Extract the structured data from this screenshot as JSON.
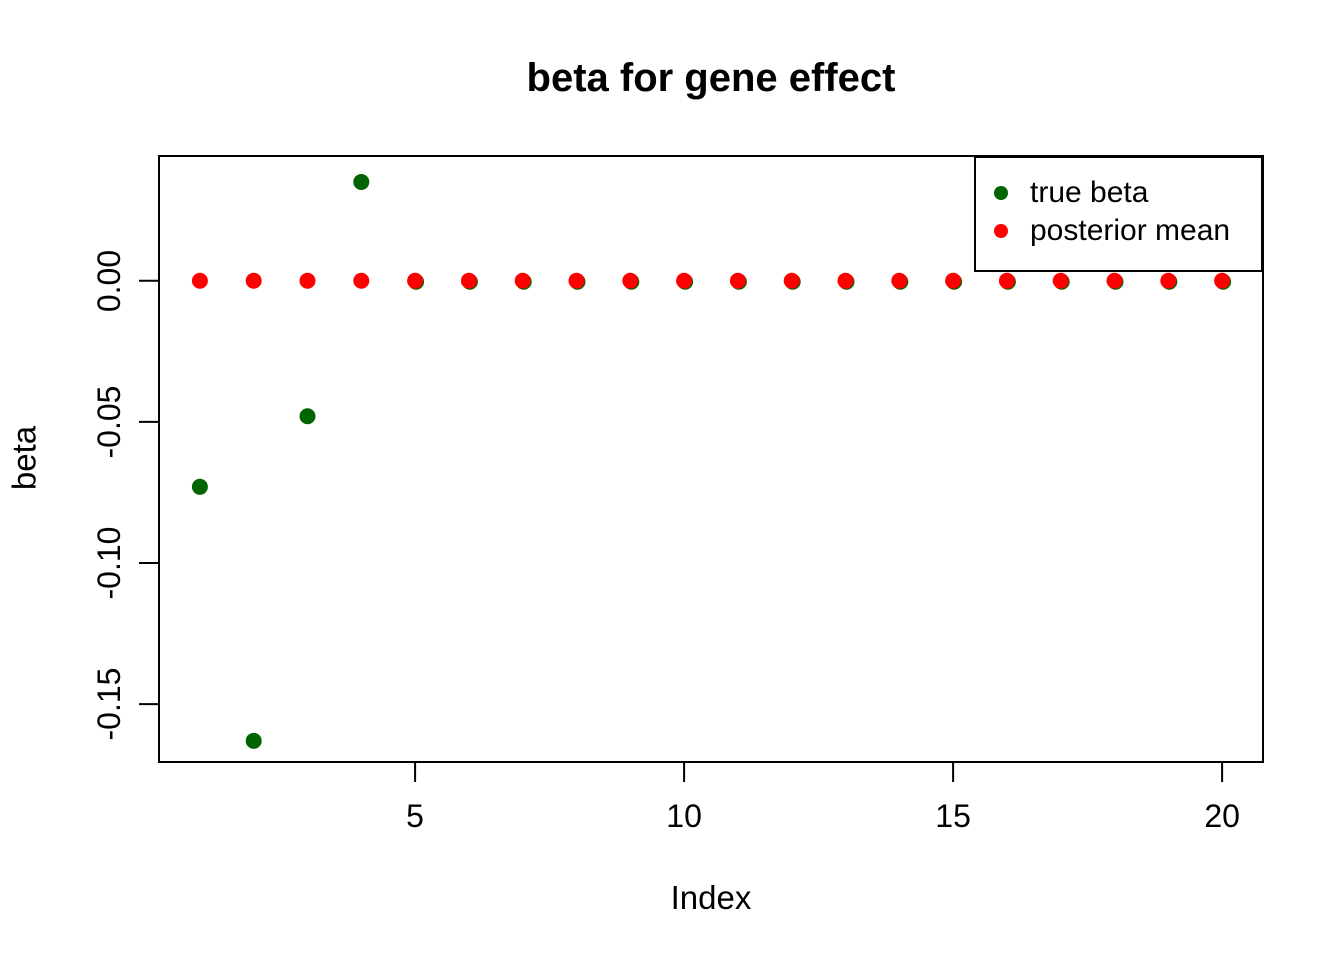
{
  "figure": {
    "background_color": "#ffffff",
    "foreground_color": "#000000"
  },
  "chart_data": {
    "type": "scatter",
    "title": "beta for gene effect",
    "xlabel": "Index",
    "ylabel": "beta",
    "grid": false,
    "legend_position": "top-right",
    "x": [
      1,
      2,
      3,
      4,
      5,
      6,
      7,
      8,
      9,
      10,
      11,
      12,
      13,
      14,
      15,
      16,
      17,
      18,
      19,
      20
    ],
    "series": [
      {
        "name": "true beta",
        "color": "#006400",
        "marker": "filled-circle",
        "values": [
          -0.073,
          -0.163,
          -0.048,
          0.035,
          0,
          0,
          0,
          0,
          0,
          0,
          0,
          0,
          0,
          0,
          0,
          0,
          0,
          0,
          0,
          0
        ]
      },
      {
        "name": "posterior mean",
        "color": "#ff0000",
        "marker": "filled-circle",
        "values": [
          0,
          0,
          0,
          0,
          0,
          0,
          0,
          0,
          0,
          0,
          0,
          0,
          0,
          0,
          0,
          0,
          0,
          0,
          0,
          0
        ]
      }
    ],
    "xlim": [
      0.24,
      20.76
    ],
    "ylim": [
      -0.1705,
      0.0442
    ],
    "xticks": {
      "values": [
        5,
        10,
        15,
        20
      ],
      "labels": [
        "5",
        "10",
        "15",
        "20"
      ]
    },
    "yticks": {
      "values": [
        0,
        -0.05,
        -0.1,
        -0.15
      ],
      "labels": [
        "0.00",
        "-0.05",
        "-0.10",
        "-0.15"
      ]
    }
  },
  "legend": {
    "items": [
      {
        "label": "true beta",
        "color": "#006400"
      },
      {
        "label": "posterior mean",
        "color": "#ff0000"
      }
    ]
  }
}
